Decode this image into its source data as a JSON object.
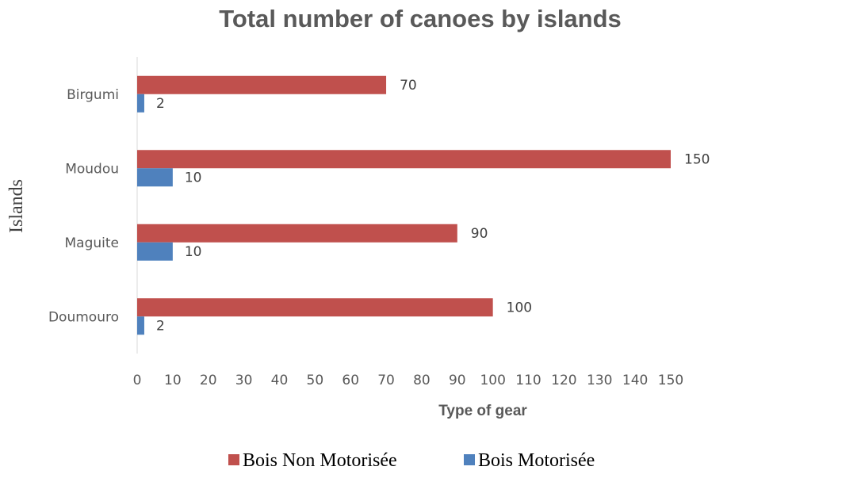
{
  "chart_data": {
    "type": "bar",
    "orientation": "horizontal",
    "title": "Total number of canoes by islands",
    "xlabel": "Type of gear",
    "ylabel": "Islands",
    "categories": [
      "Birgumi",
      "Moudou",
      "Maguite",
      "Doumouro"
    ],
    "series": [
      {
        "name": "Bois Non Motorisée",
        "values": [
          70,
          150,
          90,
          100
        ],
        "color": "#c0504d"
      },
      {
        "name": "Bois Motorisée",
        "values": [
          2,
          10,
          10,
          2
        ],
        "color": "#4f81bd"
      }
    ],
    "xlim": [
      0,
      150
    ],
    "xticks": [
      "0",
      "10",
      "20",
      "30",
      "40",
      "50",
      "60",
      "70",
      "80",
      "90",
      "100",
      "110",
      "120",
      "130",
      "140",
      "150"
    ],
    "grid": false,
    "legend": "bottom"
  }
}
